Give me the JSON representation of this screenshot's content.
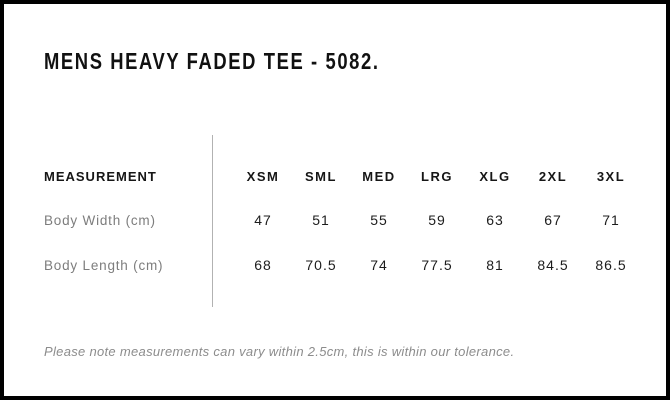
{
  "header": {
    "title": "MENS HEAVY FADED TEE - 5082."
  },
  "table": {
    "label_header": "MEASUREMENT",
    "sizes": [
      "XSM",
      "SML",
      "MED",
      "LRG",
      "XLG",
      "2XL",
      "3XL"
    ],
    "rows": [
      {
        "label": "Body Width (cm)",
        "values": [
          "47",
          "51",
          "55",
          "59",
          "63",
          "67",
          "71"
        ]
      },
      {
        "label": "Body Length (cm)",
        "values": [
          "68",
          "70.5",
          "74",
          "77.5",
          "81",
          "84.5",
          "86.5"
        ]
      }
    ]
  },
  "footer": {
    "note": "Please note measurements can vary within 2.5cm, this is within our tolerance."
  },
  "colors": {
    "background": "#ffffff",
    "border": "#000000",
    "text_primary": "#161616",
    "text_muted": "#7d7d7d",
    "note_text": "#8c8c8c",
    "divider": "#b2b2b2"
  }
}
